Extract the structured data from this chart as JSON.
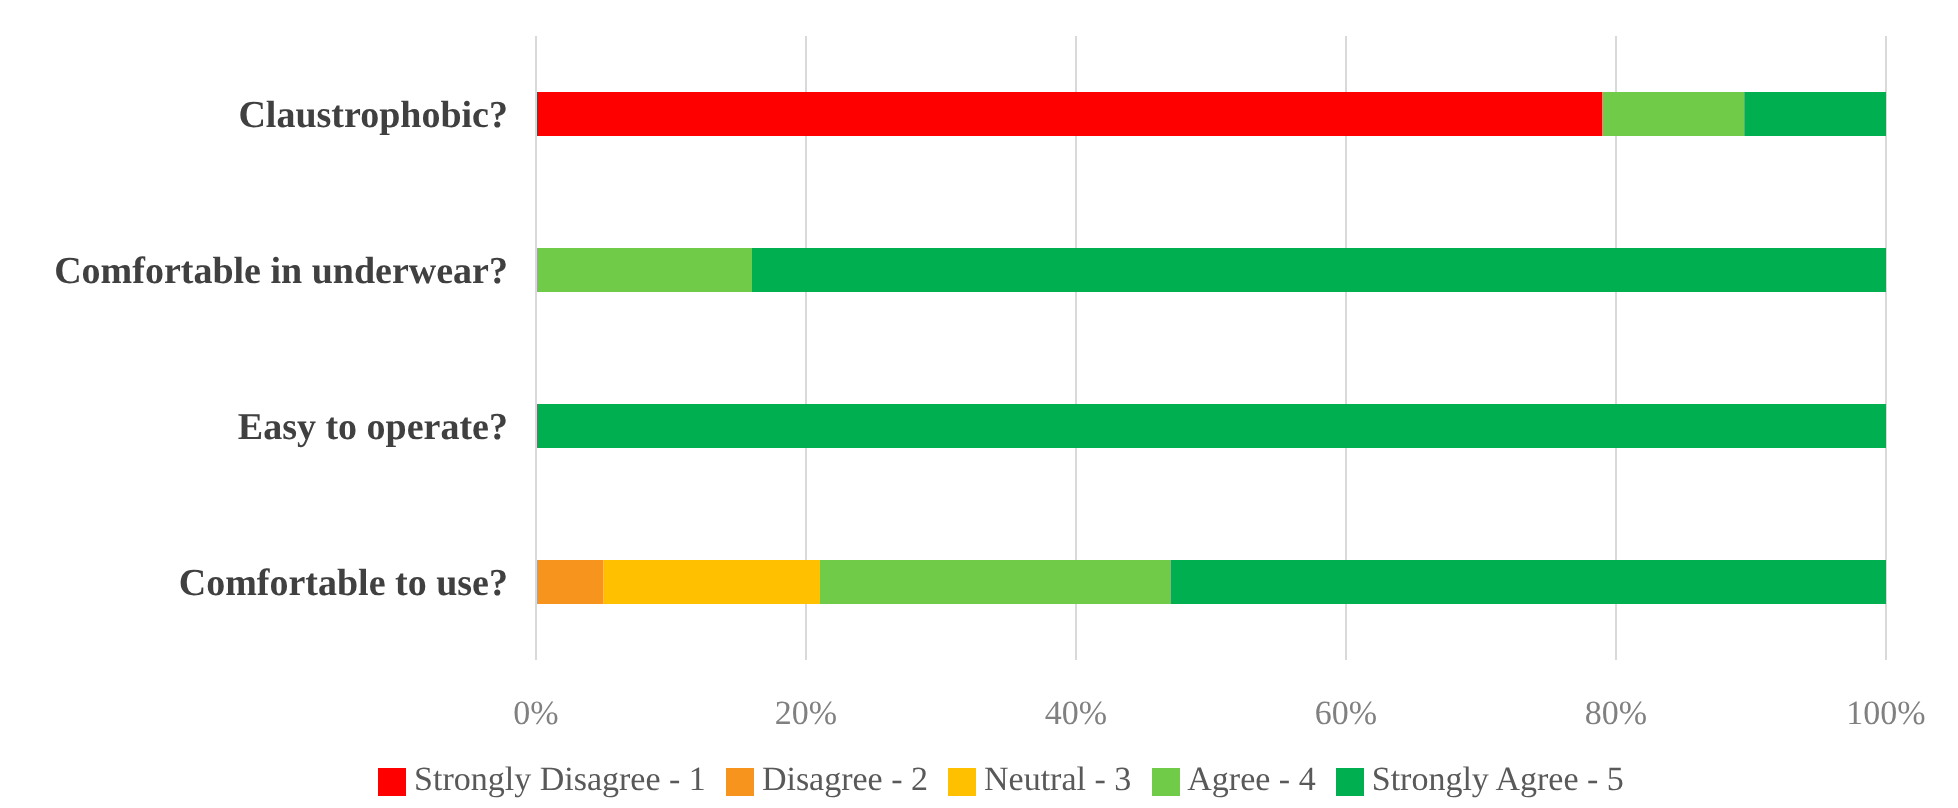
{
  "chart_data": {
    "type": "bar",
    "orientation": "horizontal",
    "stacked": true,
    "categories": [
      "Claustrophobic?",
      "Comfortable in underwear?",
      "Easy to operate?",
      "Comfortable to use?"
    ],
    "series": [
      {
        "name": "Strongly Disagree - 1",
        "color": "#ff0000",
        "values": [
          79,
          0,
          0,
          0
        ]
      },
      {
        "name": "Disagree - 2",
        "color": "#f7941d",
        "values": [
          0,
          0,
          0,
          5
        ]
      },
      {
        "name": "Neutral - 3",
        "color": "#ffc000",
        "values": [
          0,
          0,
          0,
          16
        ]
      },
      {
        "name": "Agree - 4",
        "color": "#70cc48",
        "values": [
          10.5,
          16,
          0,
          26
        ]
      },
      {
        "name": "Strongly Agree - 5",
        "color": "#00b050",
        "values": [
          10.5,
          84,
          100,
          53
        ]
      }
    ],
    "xlim": [
      0,
      100
    ],
    "xticks": [
      {
        "value": 0,
        "label": "0%"
      },
      {
        "value": 20,
        "label": "20%"
      },
      {
        "value": 40,
        "label": "40%"
      },
      {
        "value": 60,
        "label": "60%"
      },
      {
        "value": 80,
        "label": "80%"
      },
      {
        "value": 100,
        "label": "100%"
      }
    ],
    "grid": "x",
    "legend": "bottom"
  }
}
